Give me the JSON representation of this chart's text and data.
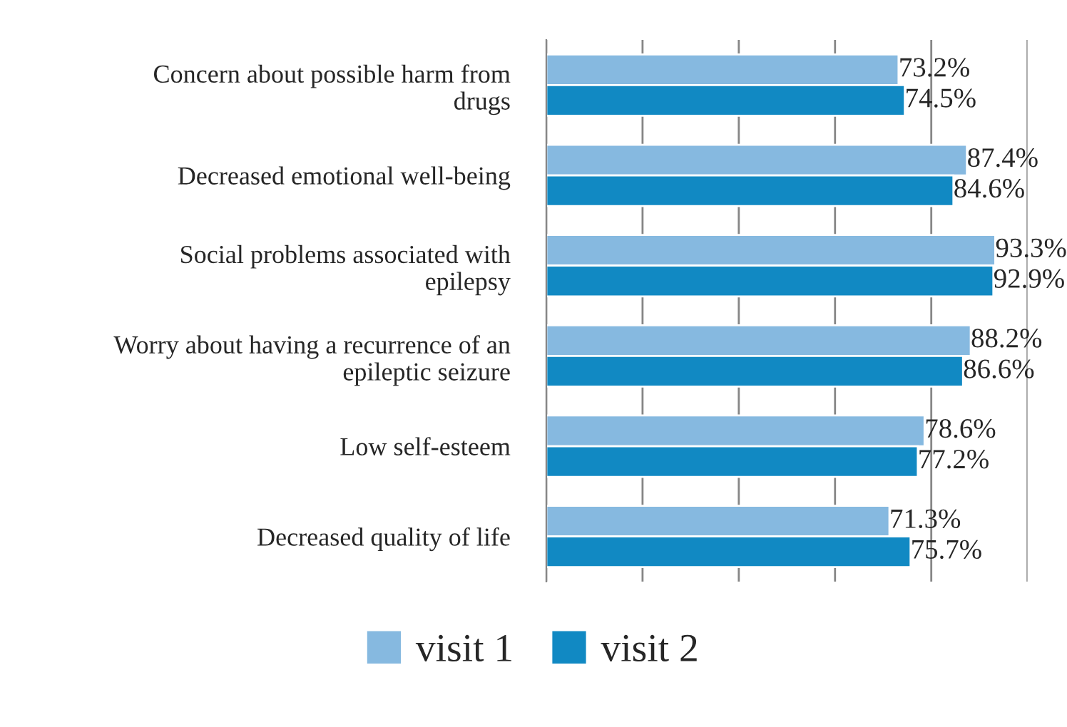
{
  "chart_data": {
    "type": "bar",
    "orientation": "horizontal",
    "categories": [
      "Concern about possible harm from\ndrugs",
      "Decreased emotional well-being",
      "Social problems associated with\nepilepsy",
      "Worry about having a recurrence of an\nepileptic seizure",
      "Low self-esteem",
      "Decreased quality of life"
    ],
    "series": [
      {
        "name": "visit 1",
        "color": "#86b9e0",
        "values": [
          73.2,
          87.4,
          93.3,
          88.2,
          78.6,
          71.3
        ],
        "value_labels": [
          "73.2%",
          "87.4%",
          "93.3%",
          "88.2%",
          "78.6%",
          "71.3%"
        ]
      },
      {
        "name": "visit 2",
        "color": "#1189c3",
        "values": [
          74.5,
          84.6,
          92.9,
          86.6,
          77.2,
          75.7
        ],
        "value_labels": [
          "74.5%",
          "84.6%",
          "92.9%",
          "86.6%",
          "77.2%",
          "75.7%"
        ]
      }
    ],
    "xlim": [
      0,
      100
    ],
    "xticks": [
      {
        "value": 0,
        "label": null
      },
      {
        "value": 20,
        "label": null
      },
      {
        "value": 40,
        "label": null
      },
      {
        "value": 60,
        "label": null
      },
      {
        "value": 80,
        "label": null
      },
      {
        "value": 100,
        "label": null
      }
    ],
    "grid": "x",
    "legend": "bottom"
  }
}
